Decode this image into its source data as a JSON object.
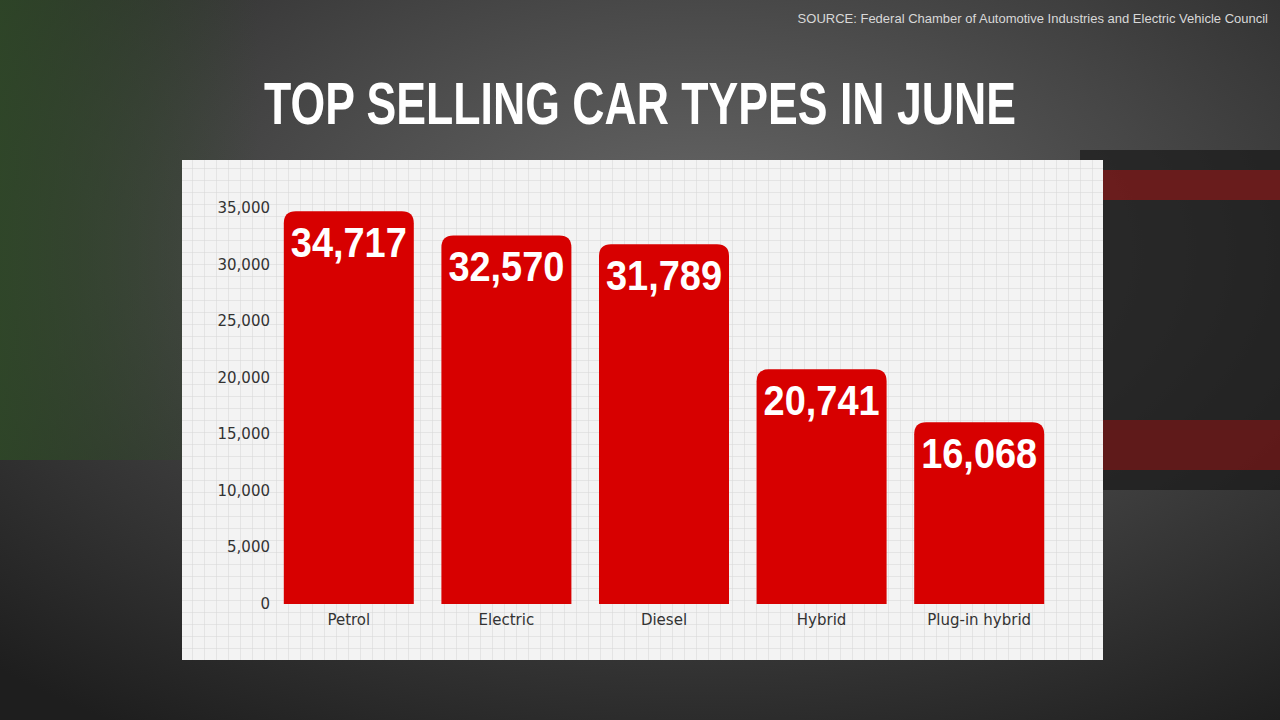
{
  "chart_data": {
    "type": "bar",
    "title": "TOP SELLING CAR TYPES IN JUNE",
    "source": "SOURCE: Federal Chamber of Automotive Industries and Electric Vehicle Council",
    "categories": [
      "Petrol",
      "Electric",
      "Diesel",
      "Hybrid",
      "Plug-in hybrid"
    ],
    "values": [
      34717,
      32570,
      31789,
      20741,
      16068
    ],
    "value_labels": [
      "34,717",
      "32,570",
      "31,789",
      "20,741",
      "16,068"
    ],
    "color": "#d70000",
    "ylim": [
      0,
      35000
    ],
    "yticks": [
      0,
      {
        "value": 5000,
        "label": "5,000"
      },
      {
        "value": 10000,
        "label": "10,000"
      },
      {
        "value": 15000,
        "label": "15,000"
      },
      {
        "value": 20000,
        "label": "20,000"
      },
      {
        "value": 25000,
        "label": "25,000"
      },
      {
        "value": 30000,
        "label": "30,000"
      },
      {
        "value": 35000,
        "label": "35,000"
      }
    ],
    "grid": false,
    "data_labels": true
  }
}
